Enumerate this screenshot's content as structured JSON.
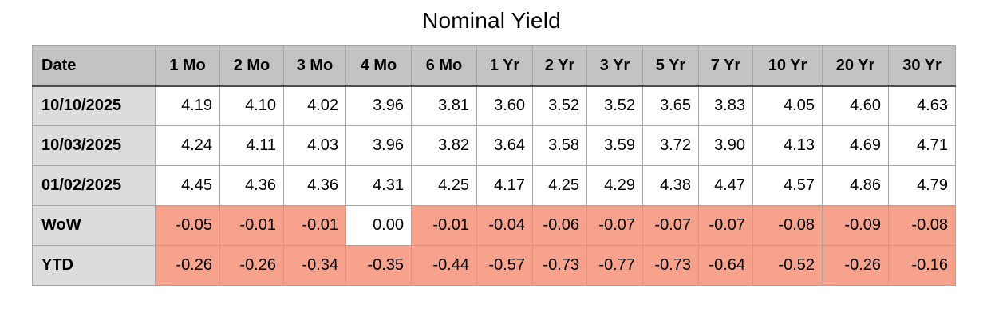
{
  "title": "Nominal Yield",
  "chart_data": {
    "type": "table",
    "title": "Nominal Yield",
    "columns": [
      "Date",
      "1 Mo",
      "2 Mo",
      "3 Mo",
      "4 Mo",
      "6 Mo",
      "1 Yr",
      "2 Yr",
      "3 Yr",
      "5 Yr",
      "7 Yr",
      "10 Yr",
      "20 Yr",
      "30 Yr"
    ],
    "rows": [
      {
        "label": "10/10/2025",
        "kind": "yield",
        "values": [
          "4.19",
          "4.10",
          "4.02",
          "3.96",
          "3.81",
          "3.60",
          "3.52",
          "3.52",
          "3.65",
          "3.83",
          "4.05",
          "4.60",
          "4.63"
        ]
      },
      {
        "label": "10/03/2025",
        "kind": "yield",
        "values": [
          "4.24",
          "4.11",
          "4.03",
          "3.96",
          "3.82",
          "3.64",
          "3.58",
          "3.59",
          "3.72",
          "3.90",
          "4.13",
          "4.69",
          "4.71"
        ]
      },
      {
        "label": "01/02/2025",
        "kind": "yield",
        "values": [
          "4.45",
          "4.36",
          "4.36",
          "4.31",
          "4.25",
          "4.17",
          "4.25",
          "4.29",
          "4.38",
          "4.47",
          "4.57",
          "4.86",
          "4.79"
        ]
      },
      {
        "label": "WoW",
        "kind": "change",
        "values": [
          "-0.05",
          "-0.01",
          "-0.01",
          "0.00",
          "-0.01",
          "-0.04",
          "-0.06",
          "-0.07",
          "-0.07",
          "-0.07",
          "-0.08",
          "-0.09",
          "-0.08"
        ]
      },
      {
        "label": "YTD",
        "kind": "change",
        "values": [
          "-0.26",
          "-0.26",
          "-0.34",
          "-0.35",
          "-0.44",
          "-0.57",
          "-0.73",
          "-0.77",
          "-0.73",
          "-0.64",
          "-0.52",
          "-0.26",
          "-0.16"
        ]
      }
    ],
    "highlight_rule": "negative values in change rows have salmon background; zero stays white",
    "grid": true,
    "legend_position": "none"
  },
  "colors": {
    "header_bg": "#c3c3c3",
    "label_column_bg": "#dcdcdc",
    "negative_highlight_bg": "#f7a28c",
    "cell_bg": "#ffffff",
    "grid_border": "#a6a6a6",
    "outer_border": "#8c8c8c",
    "header_divider": "#4d4d4d",
    "text": "#000000"
  }
}
